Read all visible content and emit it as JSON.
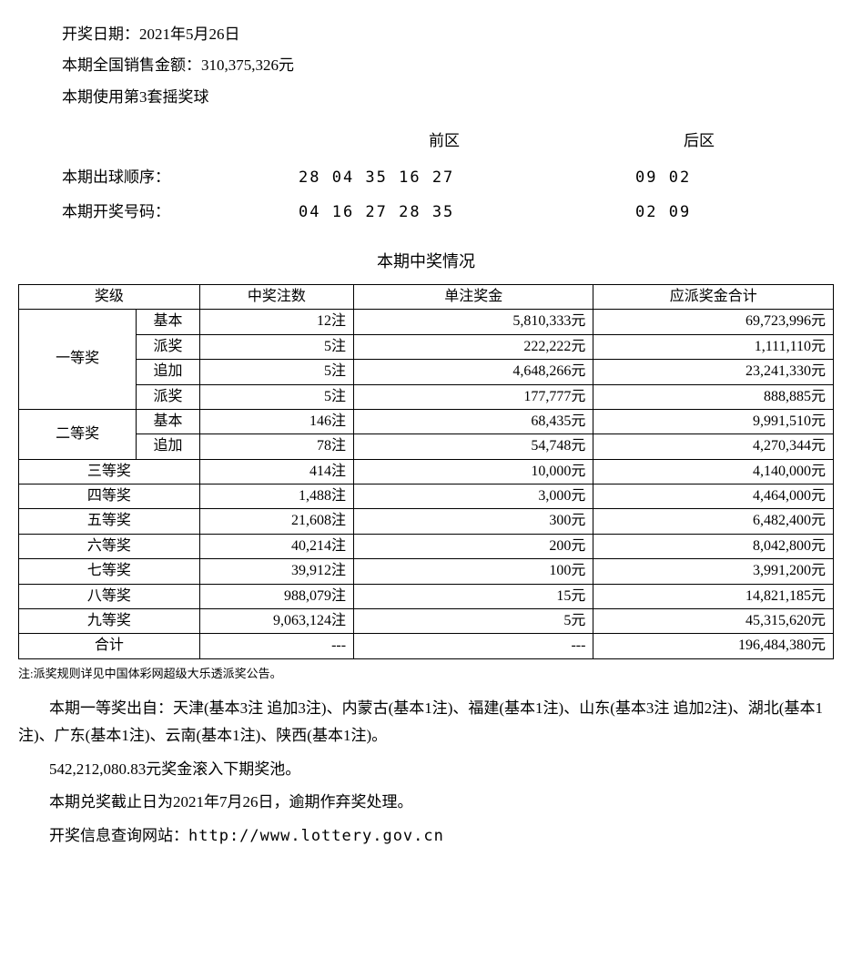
{
  "header": {
    "date_label": "开奖日期：",
    "date_value": "2021年5月26日",
    "sales_label": "本期全国销售金额：",
    "sales_value": "310,375,326元",
    "ballset_label": "本期使用第3套摇奖球"
  },
  "numbers": {
    "front_header": "前区",
    "back_header": "后区",
    "draw_order_label": "本期出球顺序：",
    "draw_order_front": "28 04 35 16 27",
    "draw_order_back": "09 02",
    "winning_label": "本期开奖号码：",
    "winning_front": "04 16 27 28 35",
    "winning_back": "02 09"
  },
  "table": {
    "title": "本期中奖情况",
    "headers": {
      "level": "奖级",
      "count": "中奖注数",
      "per": "单注奖金",
      "total": "应派奖金合计"
    },
    "first": {
      "name": "一等奖",
      "sub": [
        {
          "type": "基本",
          "count": "12注",
          "per": "5,810,333元",
          "total": "69,723,996元"
        },
        {
          "type": "派奖",
          "count": "5注",
          "per": "222,222元",
          "total": "1,111,110元"
        },
        {
          "type": "追加",
          "count": "5注",
          "per": "4,648,266元",
          "total": "23,241,330元"
        },
        {
          "type": "派奖",
          "count": "5注",
          "per": "177,777元",
          "total": "888,885元"
        }
      ]
    },
    "second": {
      "name": "二等奖",
      "sub": [
        {
          "type": "基本",
          "count": "146注",
          "per": "68,435元",
          "total": "9,991,510元"
        },
        {
          "type": "追加",
          "count": "78注",
          "per": "54,748元",
          "total": "4,270,344元"
        }
      ]
    },
    "rows": [
      {
        "name": "三等奖",
        "count": "414注",
        "per": "10,000元",
        "total": "4,140,000元"
      },
      {
        "name": "四等奖",
        "count": "1,488注",
        "per": "3,000元",
        "total": "4,464,000元"
      },
      {
        "name": "五等奖",
        "count": "21,608注",
        "per": "300元",
        "total": "6,482,400元"
      },
      {
        "name": "六等奖",
        "count": "40,214注",
        "per": "200元",
        "total": "8,042,800元"
      },
      {
        "name": "七等奖",
        "count": "39,912注",
        "per": "100元",
        "total": "3,991,200元"
      },
      {
        "name": "八等奖",
        "count": "988,079注",
        "per": "15元",
        "total": "14,821,185元"
      },
      {
        "name": "九等奖",
        "count": "9,063,124注",
        "per": "5元",
        "total": "45,315,620元"
      }
    ],
    "total_row": {
      "name": "合计",
      "count": "---",
      "per": "---",
      "total": "196,484,380元"
    }
  },
  "footer": {
    "footnote": "注:派奖规则详见中国体彩网超级大乐透派奖公告。",
    "winners_para": "本期一等奖出自：天津(基本3注 追加3注)、内蒙古(基本1注)、福建(基本1注)、山东(基本3注 追加2注)、湖北(基本1注)、广东(基本1注)、云南(基本1注)、陕西(基本1注)。",
    "rollover": "542,212,080.83元奖金滚入下期奖池。",
    "deadline": "本期兑奖截止日为2021年7月26日，逾期作弃奖处理。",
    "url_label": "开奖信息查询网站：",
    "url": "http://www.lottery.gov.cn"
  },
  "style": {
    "border_color": "#000000",
    "background_color": "#ffffff",
    "text_color": "#000000",
    "body_fontsize": 17,
    "table_fontsize": 16,
    "footnote_fontsize": 13
  }
}
